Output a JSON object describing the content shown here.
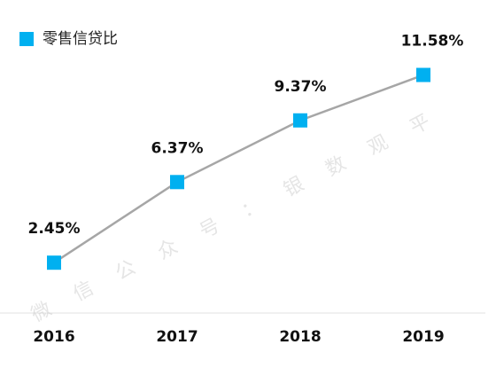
{
  "chart_data": {
    "type": "line",
    "categories": [
      "2016",
      "2017",
      "2018",
      "2019"
    ],
    "series": [
      {
        "name": "零售信贷比",
        "values": [
          2.45,
          6.37,
          9.37,
          11.58
        ],
        "value_labels": [
          "2.45%",
          "6.37%",
          "9.37%",
          "11.58%"
        ],
        "line_color": "#a6a6a6",
        "marker_color": "#00b0f0",
        "marker": "square"
      }
    ],
    "legend_position": "top-left",
    "ylim": [
      0,
      13.5
    ],
    "grid": false,
    "axis_color": "#e0e0e0"
  },
  "watermark": "微 信 公 众 号 ： 银 数 观 平"
}
